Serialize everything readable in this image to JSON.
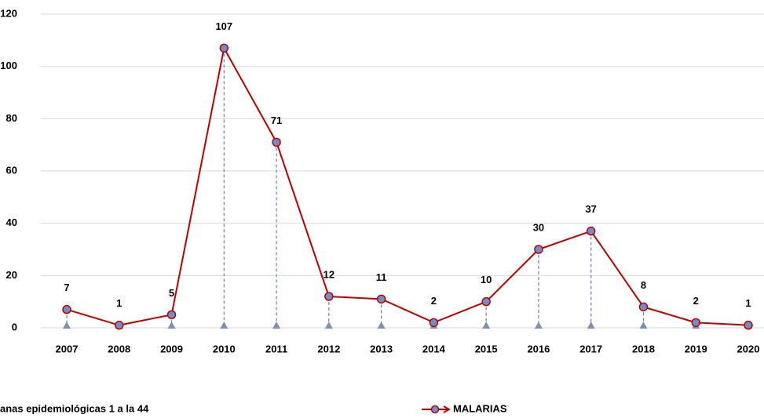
{
  "chart_data": {
    "type": "line",
    "categories": [
      "2007",
      "2008",
      "2009",
      "2010",
      "2011",
      "2012",
      "2013",
      "2014",
      "2015",
      "2016",
      "2017",
      "2018",
      "2019",
      "2020"
    ],
    "series": [
      {
        "name": "MALARIAS",
        "color": "#c00000",
        "marker_color": "#6f8fc9",
        "values": [
          7,
          1,
          5,
          107,
          71,
          12,
          11,
          2,
          10,
          30,
          37,
          8,
          2,
          1
        ]
      }
    ],
    "ylim": [
      0,
      120
    ],
    "yticks": [
      0,
      20,
      40,
      60,
      80,
      100,
      120
    ],
    "grid": true,
    "footnote": "anas epidemiológicas 1 a la 44"
  }
}
